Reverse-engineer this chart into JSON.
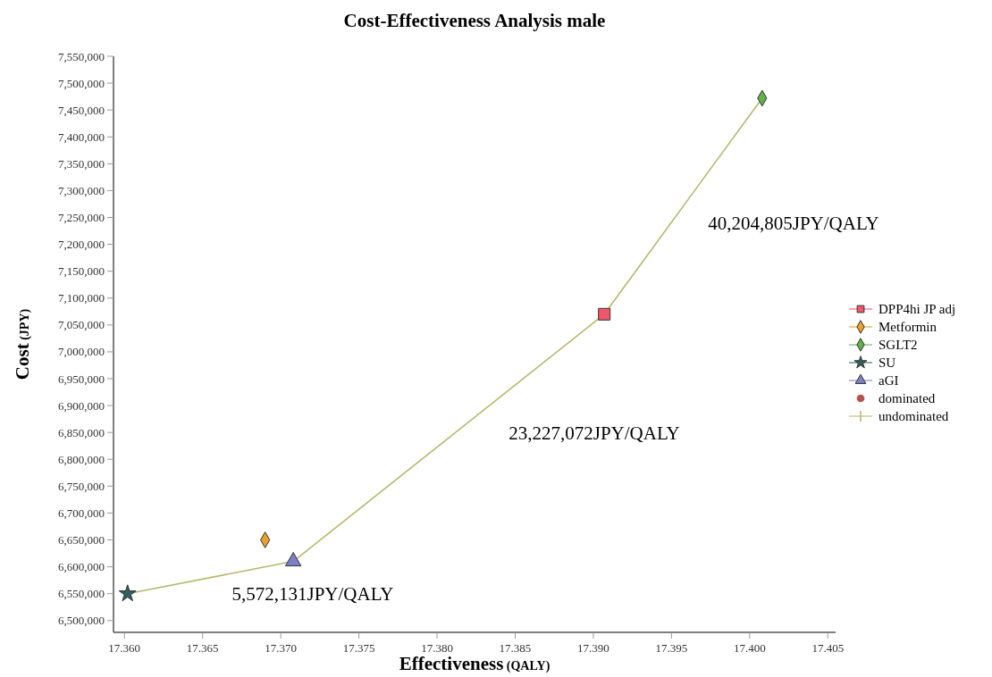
{
  "chart_data": {
    "type": "scatter",
    "title": "Cost-Effectiveness Analysis   male",
    "xlabel": "Effectiveness (QALY)",
    "ylabel": "Cost (JPY)",
    "xlim": [
      17.3593,
      17.4055
    ],
    "xticks": [
      {
        "value": 17.36,
        "label": "17.360"
      },
      17.365,
      {
        "value": 17.37,
        "label": "17.370"
      },
      17.375,
      {
        "value": 17.38,
        "label": "17.380"
      },
      17.385,
      {
        "value": 17.39,
        "label": "17.390"
      },
      17.395,
      {
        "value": 17.4,
        "label": "17.400"
      },
      17.405
    ],
    "ylim": [
      6478000,
      7550000
    ],
    "yticks": [
      {
        "value": 6500000,
        "label": "6,500,000"
      },
      {
        "value": 6550000,
        "label": "6,550,000"
      },
      {
        "value": 6600000,
        "label": "6,600,000"
      },
      {
        "value": 6650000,
        "label": "6,650,000"
      },
      {
        "value": 6700000,
        "label": "6,700,000"
      },
      {
        "value": 6750000,
        "label": "6,750,000"
      },
      {
        "value": 6800000,
        "label": "6,800,000"
      },
      {
        "value": 6850000,
        "label": "6,850,000"
      },
      {
        "value": 6900000,
        "label": "6,900,000"
      },
      {
        "value": 6950000,
        "label": "6,950,000"
      },
      {
        "value": 7000000,
        "label": "7,000,000"
      },
      {
        "value": 7050000,
        "label": "7,050,000"
      },
      {
        "value": 7100000,
        "label": "7,100,000"
      },
      {
        "value": 7150000,
        "label": "7,150,000"
      },
      {
        "value": 7200000,
        "label": "7,200,000"
      },
      {
        "value": 7250000,
        "label": "7,250,000"
      },
      {
        "value": 7300000,
        "label": "7,300,000"
      },
      {
        "value": 7350000,
        "label": "7,350,000"
      },
      {
        "value": 7400000,
        "label": "7,400,000"
      },
      {
        "value": 7450000,
        "label": "7,450,000"
      },
      {
        "value": 7500000,
        "label": "7,500,000"
      },
      {
        "value": 7550000,
        "label": "7,550,000"
      }
    ],
    "grid": false,
    "legend": "right",
    "series": [
      {
        "name": "undominated",
        "type": "line",
        "color": "#b5b96a",
        "x": [
          17.3602,
          17.3708,
          17.3907,
          17.4008
        ],
        "values": [
          6550000,
          6610000,
          7070000,
          7472000
        ]
      },
      {
        "name": "DPP4hi JP adj",
        "color": "#f0566a",
        "marker": "square",
        "x": [
          17.3907
        ],
        "values": [
          7070000
        ]
      },
      {
        "name": "Metformin",
        "color": "#e8a22c",
        "marker": "diamond",
        "x": [
          17.369
        ],
        "values": [
          6650000
        ]
      },
      {
        "name": "SGLT2",
        "color": "#62b04e",
        "marker": "diamond",
        "x": [
          17.4008
        ],
        "values": [
          7472000
        ]
      },
      {
        "name": "SU",
        "color": "#2f5f5f",
        "marker": "star",
        "x": [
          17.3602
        ],
        "values": [
          6550000
        ]
      },
      {
        "name": "aGI",
        "color": "#7f7fc8",
        "marker": "triangle",
        "x": [
          17.3708
        ],
        "values": [
          6610000
        ]
      },
      {
        "name": "dominated",
        "color": "#b85450",
        "marker": "circle"
      }
    ],
    "annotations": [
      "5,572,131JPY/QALY",
      "23,227,072JPY/QALY",
      "40,204,805JPY/QALY"
    ]
  }
}
